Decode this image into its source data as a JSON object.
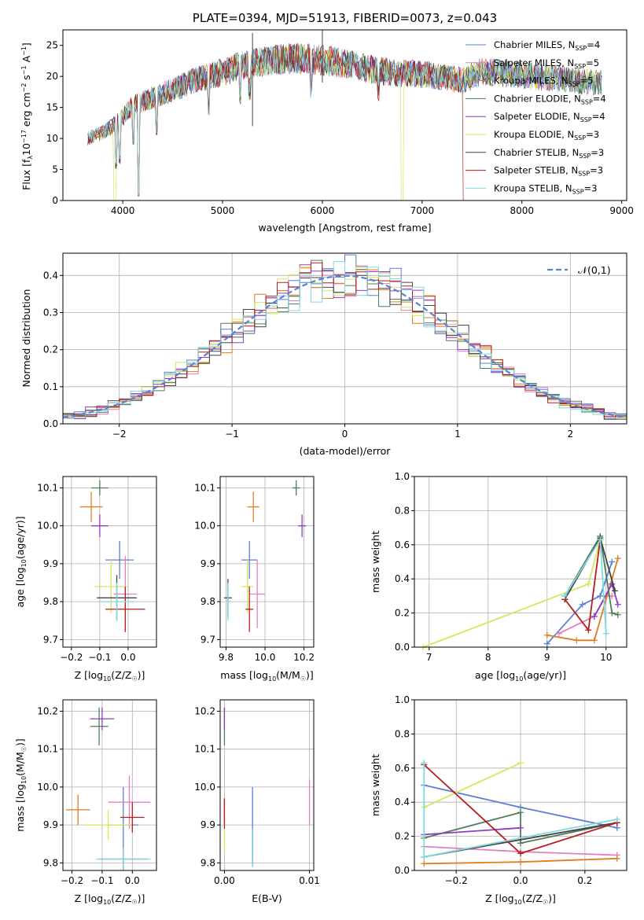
{
  "series_names": [
    "Chabrier MILES",
    "Salpeter MILES",
    "Kroupa MILES",
    "Chabrier ELODIE",
    "Salpeter ELODIE",
    "Kroupa ELODIE",
    "Chabrier STELIB",
    "Salpeter STELIB",
    "Kroupa STELIB"
  ],
  "series_colors": [
    "#5b7fd6",
    "#e07fbf",
    "#e07c22",
    "#4e7f5a",
    "#8e3fbf",
    "#d4e85a",
    "#444444",
    "#b51e1e",
    "#7fd8e0"
  ],
  "legend_suffix_text": ", N",
  "legend_sub_text": "SSP",
  "legend_nssp": [
    "=4",
    "=5",
    "=5",
    "=4",
    "=4",
    "=3",
    "=3",
    "=3",
    "=3"
  ],
  "chart_data": [
    {
      "id": "spectrum",
      "type": "line",
      "title": "PLATE=0394, MJD=51913, FIBERID=0073, z=0.043",
      "xlabel": "wavelength [Angstrom, rest frame]",
      "ylabel_main": "Flux [f",
      "ylabel_sub": "λ",
      "ylabel_rest": "10",
      "ylabel_exp1": "−17",
      "ylabel_mid": " erg cm",
      "ylabel_exp2": "−2",
      "ylabel_mid2": " s",
      "ylabel_exp3": "−1",
      "ylabel_end": " A",
      "ylabel_exp4": "−1",
      "ylabel_close": "]",
      "xlim": [
        3400,
        9050
      ],
      "ylim": [
        0,
        27.5
      ],
      "xticks": [
        4000,
        5000,
        6000,
        7000,
        8000,
        9000
      ],
      "yticks": [
        0,
        5,
        10,
        15,
        20,
        25
      ],
      "grid": false,
      "legend": "top-right",
      "continuum": [
        [
          3650,
          10
        ],
        [
          3800,
          11
        ],
        [
          3900,
          12
        ],
        [
          4000,
          13.5
        ],
        [
          4100,
          15.3
        ],
        [
          4300,
          16.6
        ],
        [
          4500,
          17.8
        ],
        [
          4700,
          19.3
        ],
        [
          4900,
          20.2
        ],
        [
          5100,
          21.2
        ],
        [
          5300,
          22.3
        ],
        [
          5500,
          22.6
        ],
        [
          5700,
          22.9
        ],
        [
          5900,
          22.8
        ],
        [
          6100,
          22.4
        ],
        [
          6300,
          21.9
        ],
        [
          6500,
          21.1
        ],
        [
          6700,
          20.6
        ],
        [
          6900,
          20.5
        ],
        [
          7050,
          20.3
        ],
        [
          7200,
          19.8
        ],
        [
          7400,
          19.4
        ],
        [
          7600,
          20.8
        ],
        [
          7800,
          20.6
        ],
        [
          8000,
          20.2
        ],
        [
          8200,
          19.8
        ],
        [
          8400,
          19.6
        ],
        [
          8600,
          19.1
        ],
        [
          8800,
          19.0
        ]
      ]
    },
    {
      "id": "residuals",
      "type": "histogram",
      "xlabel": "(data-model)/error",
      "ylabel": "Normed distribution",
      "xlim": [
        -2.5,
        2.5
      ],
      "ylim": [
        0,
        0.46
      ],
      "xticks": [
        -2,
        -1,
        0,
        1,
        2
      ],
      "yticks": [
        0.0,
        0.1,
        0.2,
        0.3,
        0.4
      ],
      "grid": true,
      "legend": "top-right",
      "bin_width": 0.1,
      "model_label": "𝒩(0,1)"
    },
    {
      "id": "age-z",
      "type": "errorbar",
      "xlabel_main": "Z [log",
      "xlabel_sub": "10",
      "xlabel_rest": "(Z/Z",
      "xlabel_sun": "☉",
      "xlabel_end": ")]",
      "ylabel_main": "age  [log",
      "ylabel_sub": "10",
      "ylabel_rest": "(age/yr)]",
      "xlim": [
        -0.23,
        0.1
      ],
      "ylim": [
        9.68,
        10.13
      ],
      "xticks": [
        -0.2,
        -0.1,
        0.0
      ],
      "yticks": [
        9.7,
        9.8,
        9.9,
        10.0,
        10.1
      ],
      "grid": true,
      "points": [
        {
          "x": -0.03,
          "y": 9.91,
          "xerr": 0.05,
          "yerr": 0.05
        },
        {
          "x": -0.01,
          "y": 9.82,
          "xerr": 0.04,
          "yerr": 0.1
        },
        {
          "x": -0.13,
          "y": 10.05,
          "xerr": 0.04,
          "yerr": 0.04
        },
        {
          "x": -0.1,
          "y": 10.1,
          "xerr": 0.03,
          "yerr": 0.02
        },
        {
          "x": -0.1,
          "y": 10.0,
          "xerr": 0.03,
          "yerr": 0.03
        },
        {
          "x": -0.06,
          "y": 9.84,
          "xerr": 0.06,
          "yerr": 0.07
        },
        {
          "x": -0.04,
          "y": 9.81,
          "xerr": 0.07,
          "yerr": 0.06
        },
        {
          "x": -0.01,
          "y": 9.78,
          "xerr": 0.07,
          "yerr": 0.06
        },
        {
          "x": -0.04,
          "y": 9.8,
          "xerr": 0.06,
          "yerr": 0.05
        }
      ]
    },
    {
      "id": "age-mass",
      "type": "errorbar",
      "xlabel_main": "mass [log",
      "xlabel_sub": "10",
      "xlabel_rest": "(M/M",
      "xlabel_sun": "☉",
      "xlabel_end": ")]",
      "xlim": [
        9.77,
        10.25
      ],
      "ylim": [
        9.68,
        10.13
      ],
      "xticks": [
        9.8,
        10.0,
        10.2
      ],
      "yticks": [
        9.7,
        9.8,
        9.9,
        10.0,
        10.1
      ],
      "grid": true,
      "points": [
        {
          "x": 9.92,
          "y": 9.91,
          "xerr": 0.04,
          "yerr": 0.05
        },
        {
          "x": 9.96,
          "y": 9.82,
          "xerr": 0.04,
          "yerr": 0.09
        },
        {
          "x": 9.94,
          "y": 10.05,
          "xerr": 0.03,
          "yerr": 0.04
        },
        {
          "x": 10.16,
          "y": 10.1,
          "xerr": 0.02,
          "yerr": 0.02
        },
        {
          "x": 10.19,
          "y": 10.0,
          "xerr": 0.02,
          "yerr": 0.03
        },
        {
          "x": 9.91,
          "y": 9.84,
          "xerr": 0.03,
          "yerr": 0.07
        },
        {
          "x": 9.81,
          "y": 9.81,
          "xerr": 0.02,
          "yerr": 0.05
        },
        {
          "x": 9.92,
          "y": 9.78,
          "xerr": 0.02,
          "yerr": 0.06
        },
        {
          "x": 9.81,
          "y": 9.8,
          "xerr": 0.01,
          "yerr": 0.05
        }
      ]
    },
    {
      "id": "mw-age",
      "type": "line",
      "xlabel_main": "age  [log",
      "xlabel_sub": "10",
      "xlabel_rest": "(age/yr)]",
      "ylabel": "mass weight",
      "xlim": [
        6.75,
        10.35
      ],
      "ylim": [
        0,
        1
      ],
      "xticks": [
        7,
        8,
        9,
        10
      ],
      "yticks": [
        0.0,
        0.2,
        0.4,
        0.6,
        0.8,
        1.0
      ],
      "grid": true,
      "lines": [
        [
          [
            9.0,
            0.02
          ],
          [
            9.6,
            0.25
          ],
          [
            9.9,
            0.3
          ],
          [
            10.1,
            0.5
          ]
        ],
        [
          [
            9.2,
            0.08
          ],
          [
            9.8,
            0.18
          ],
          [
            10.0,
            0.3
          ],
          [
            10.1,
            0.3
          ]
        ],
        [
          [
            9.0,
            0.07
          ],
          [
            9.5,
            0.04
          ],
          [
            9.8,
            0.04
          ],
          [
            10.2,
            0.52
          ]
        ],
        [
          [
            9.3,
            0.3
          ],
          [
            9.9,
            0.65
          ],
          [
            10.1,
            0.2
          ],
          [
            10.2,
            0.19
          ]
        ],
        [
          [
            9.8,
            0.18
          ],
          [
            10.1,
            0.37
          ],
          [
            10.2,
            0.25
          ]
        ],
        [
          [
            6.9,
            0.0
          ],
          [
            9.7,
            0.37
          ],
          [
            9.9,
            0.63
          ]
        ],
        [
          [
            9.3,
            0.28
          ],
          [
            9.9,
            0.64
          ],
          [
            10.15,
            0.33
          ]
        ],
        [
          [
            9.3,
            0.28
          ],
          [
            9.7,
            0.1
          ],
          [
            9.9,
            0.63
          ]
        ],
        [
          [
            9.3,
            0.3
          ],
          [
            9.9,
            0.63
          ],
          [
            10.0,
            0.08
          ]
        ]
      ]
    },
    {
      "id": "mass-z",
      "type": "errorbar",
      "xlabel_main": "Z [log",
      "xlabel_sub": "10",
      "xlabel_rest": "(Z/Z",
      "xlabel_sun": "☉",
      "xlabel_end": ")]",
      "ylabel_main": "mass [log",
      "ylabel_sub": "10",
      "ylabel_rest": "(M/M",
      "ylabel_sun": "☉",
      "ylabel_end": ")]",
      "xlim": [
        -0.23,
        0.08
      ],
      "ylim": [
        9.78,
        10.23
      ],
      "xticks": [
        -0.2,
        -0.1,
        0.0
      ],
      "yticks": [
        9.8,
        9.9,
        10.0,
        10.1,
        10.2
      ],
      "grid": true,
      "points": [
        {
          "x": -0.03,
          "y": 9.9,
          "xerr": 0.05,
          "yerr": 0.1
        },
        {
          "x": -0.01,
          "y": 9.96,
          "xerr": 0.07,
          "yerr": 0.07
        },
        {
          "x": -0.18,
          "y": 9.94,
          "xerr": 0.04,
          "yerr": 0.04
        },
        {
          "x": -0.11,
          "y": 10.16,
          "xerr": 0.03,
          "yerr": 0.05
        },
        {
          "x": -0.1,
          "y": 10.18,
          "xerr": 0.04,
          "yerr": 0.03
        },
        {
          "x": -0.08,
          "y": 9.9,
          "xerr": 0.08,
          "yerr": 0.04
        },
        {
          "x": -0.03,
          "y": 9.81,
          "xerr": 0.08,
          "yerr": 0.03
        },
        {
          "x": 0.0,
          "y": 9.92,
          "xerr": 0.04,
          "yerr": 0.04
        },
        {
          "x": -0.03,
          "y": 9.81,
          "xerr": 0.09,
          "yerr": 0.03
        }
      ]
    },
    {
      "id": "mass-ebv",
      "type": "errorbar",
      "xlabel": "E(B-V)",
      "xlim": [
        -0.0005,
        0.0105
      ],
      "ylim": [
        9.78,
        10.23
      ],
      "xticks": [
        0.0,
        0.01
      ],
      "xtick_labels": [
        "0.00",
        "0.01"
      ],
      "yticks": [
        9.8,
        9.9,
        10.0,
        10.1,
        10.2
      ],
      "grid": true,
      "points": [
        {
          "x": 0.0033,
          "y": 9.9,
          "xerr": 0.0,
          "yerr": 0.1
        },
        {
          "x": 0.01,
          "y": 9.96,
          "xerr": 0.0,
          "yerr": 0.06
        },
        {
          "x": 0.0,
          "y": 9.94,
          "xerr": 0.0,
          "yerr": 0.03
        },
        {
          "x": 0.0,
          "y": 10.16,
          "xerr": 0.0,
          "yerr": 0.05
        },
        {
          "x": 0.0,
          "y": 10.18,
          "xerr": 0.0,
          "yerr": 0.03
        },
        {
          "x": 0.0,
          "y": 9.87,
          "xerr": 0.0,
          "yerr": 0.04
        },
        {
          "x": 0.0033,
          "y": 9.84,
          "xerr": 0.0,
          "yerr": 0.05
        },
        {
          "x": 0.0,
          "y": 9.93,
          "xerr": 0.0,
          "yerr": 0.04
        },
        {
          "x": 0.0033,
          "y": 9.84,
          "xerr": 0.0,
          "yerr": 0.05
        }
      ]
    },
    {
      "id": "mw-z",
      "type": "line",
      "xlabel_main": "Z [log",
      "xlabel_sub": "10",
      "xlabel_rest": "(Z/Z",
      "xlabel_sun": "☉",
      "xlabel_end": ")]",
      "ylabel": "mass weight",
      "xlim": [
        -0.33,
        0.33
      ],
      "ylim": [
        0,
        1
      ],
      "xticks": [
        -0.2,
        0.0,
        0.2
      ],
      "yticks": [
        0.0,
        0.2,
        0.4,
        0.6,
        0.8,
        1.0
      ],
      "grid": true,
      "lines": [
        [
          [
            -0.3,
            0.5
          ],
          [
            0.0,
            0.37
          ],
          [
            0.3,
            0.25
          ]
        ],
        [
          [
            -0.3,
            0.14
          ],
          [
            0.0,
            0.11
          ],
          [
            0.3,
            0.09
          ]
        ],
        [
          [
            -0.3,
            0.04
          ],
          [
            0.0,
            0.05
          ],
          [
            0.3,
            0.07
          ]
        ],
        [
          [
            -0.3,
            0.19
          ],
          [
            0.0,
            0.34
          ],
          [
            0.0,
            0.16
          ],
          [
            0.3,
            0.28
          ]
        ],
        [
          [
            -0.3,
            0.21
          ],
          [
            0.0,
            0.25
          ]
        ],
        [
          [
            -0.3,
            0.37
          ],
          [
            0.0,
            0.63
          ]
        ],
        [
          [
            -0.3,
            0.08
          ],
          [
            0.3,
            0.28
          ]
        ],
        [
          [
            -0.3,
            0.62
          ],
          [
            0.0,
            0.1
          ],
          [
            0.3,
            0.28
          ]
        ],
        [
          [
            -0.3,
            0.63
          ],
          [
            -0.3,
            0.08
          ],
          [
            0.3,
            0.3
          ]
        ]
      ]
    }
  ]
}
